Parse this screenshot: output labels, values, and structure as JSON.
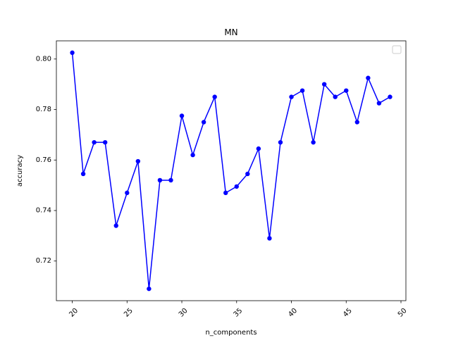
{
  "chart_data": {
    "type": "line",
    "title": "MN",
    "xlabel": "n_components",
    "ylabel": "accuracy",
    "x": [
      20,
      21,
      22,
      23,
      24,
      25,
      26,
      27,
      28,
      29,
      30,
      31,
      32,
      33,
      34,
      35,
      36,
      37,
      38,
      39,
      40,
      41,
      42,
      43,
      44,
      45,
      46,
      47,
      48,
      49
    ],
    "series": [
      {
        "values": [
          0.8025,
          0.7545,
          0.767,
          0.767,
          0.734,
          0.747,
          0.7595,
          0.709,
          0.752,
          0.752,
          0.7775,
          0.762,
          0.775,
          0.785,
          0.747,
          0.7495,
          0.7545,
          0.7645,
          0.729,
          0.767,
          0.785,
          0.7875,
          0.767,
          0.79,
          0.785,
          0.7875,
          0.775,
          0.7925,
          0.7825,
          0.785
        ],
        "color": "#0000ff",
        "marker": "circle"
      }
    ],
    "xlim": [
      18.55,
      50.45
    ],
    "ylim": [
      0.7043,
      0.8072
    ],
    "xticks": [
      20,
      25,
      30,
      35,
      40,
      45,
      50
    ],
    "yticks": [
      0.72,
      0.74,
      0.76,
      0.78,
      0.8
    ],
    "xtick_labels": [
      "20",
      "25",
      "30",
      "35",
      "40",
      "45",
      "50"
    ],
    "ytick_labels": [
      "0.72",
      "0.74",
      "0.76",
      "0.78",
      "0.80"
    ],
    "xtick_rotation": 45,
    "grid": false,
    "legend": {
      "placement": "upper right",
      "entries": []
    }
  }
}
